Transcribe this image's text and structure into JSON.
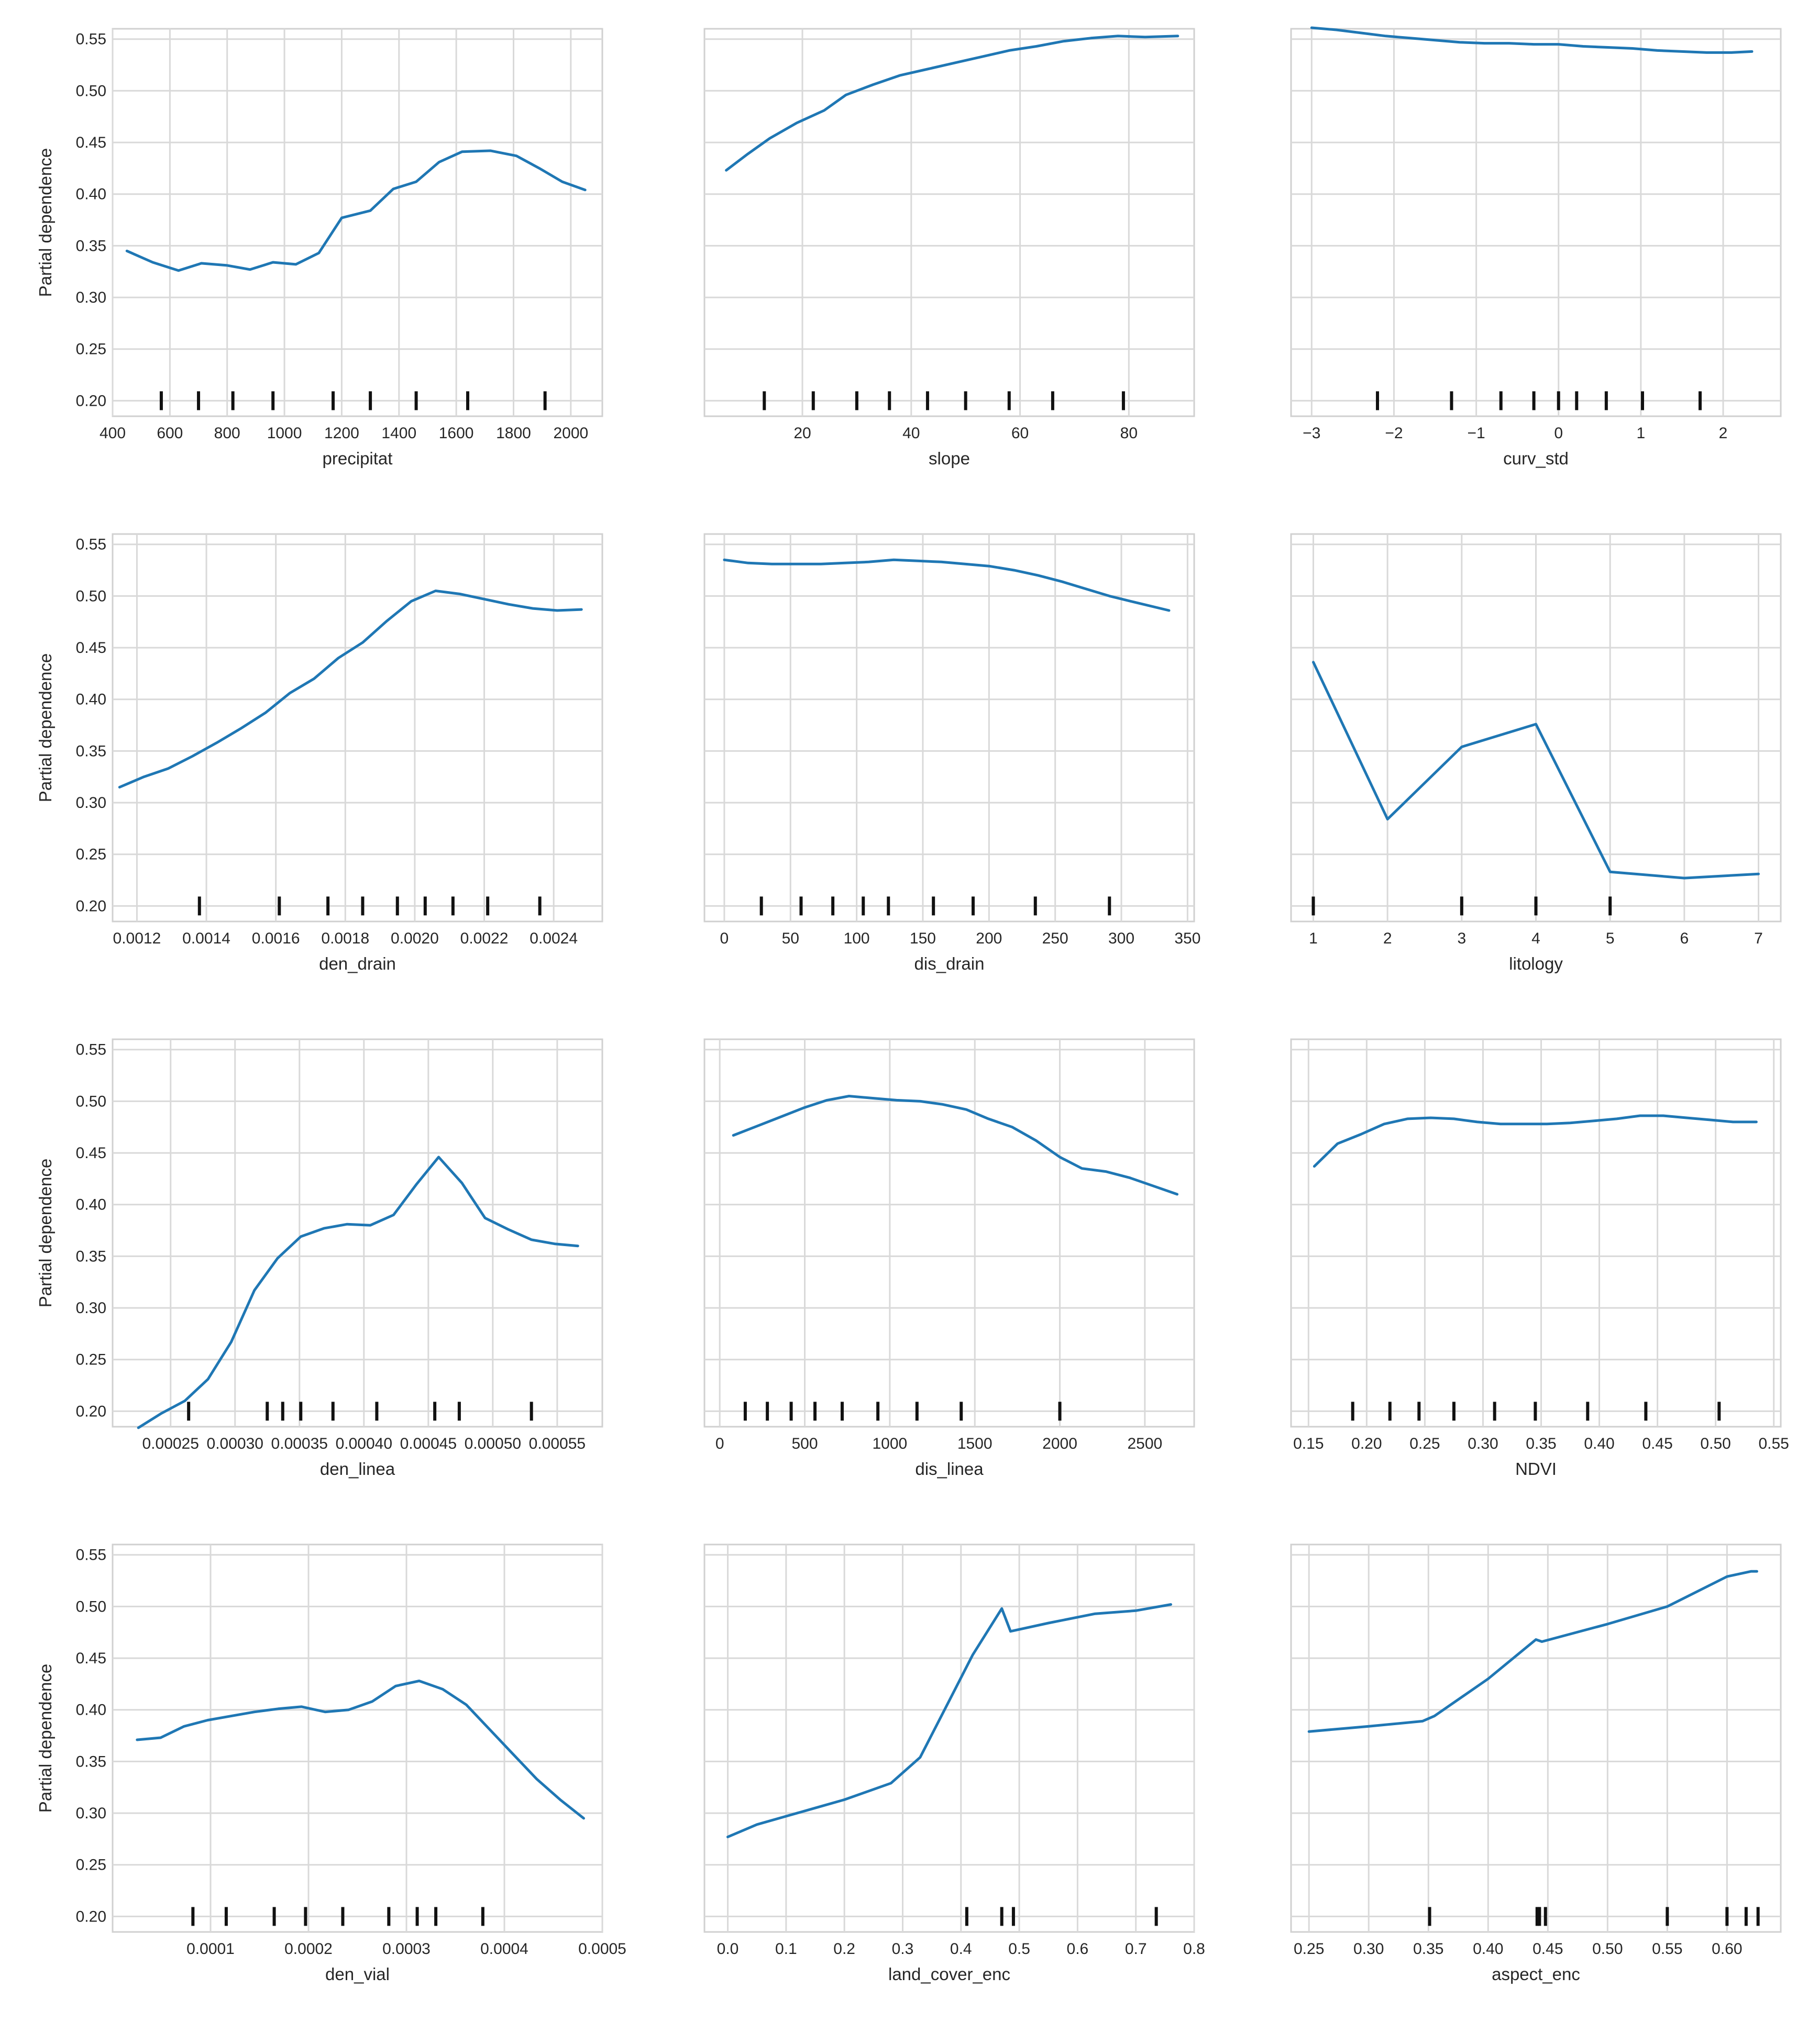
{
  "figure": {
    "line_color": "#1f77b4",
    "grid": true,
    "ylim": [
      0.185,
      0.56
    ],
    "yticks": [
      0.2,
      0.25,
      0.3,
      0.35,
      0.4,
      0.45,
      0.5,
      0.55
    ],
    "ylabel": "Partial dependence"
  },
  "chart_data": [
    {
      "type": "line",
      "xlabel": "precipitat",
      "xlim": [
        400,
        2110
      ],
      "xticks": [
        400,
        600,
        800,
        1000,
        1200,
        1400,
        1600,
        1800,
        2000
      ],
      "x": [
        450,
        540,
        630,
        710,
        800,
        880,
        960,
        1040,
        1120,
        1200,
        1300,
        1380,
        1460,
        1540,
        1620,
        1720,
        1810,
        1890,
        1970,
        2050
      ],
      "y": [
        0.345,
        0.334,
        0.326,
        0.333,
        0.331,
        0.327,
        0.334,
        0.332,
        0.343,
        0.377,
        0.384,
        0.405,
        0.412,
        0.431,
        0.441,
        0.442,
        0.437,
        0.425,
        0.412,
        0.404
      ],
      "deciles": [
        570,
        700,
        820,
        960,
        1170,
        1300,
        1460,
        1640,
        1910
      ]
    },
    {
      "type": "line",
      "xlabel": "slope",
      "xlim": [
        2,
        92
      ],
      "xticks": [
        20,
        40,
        60,
        80
      ],
      "x": [
        6,
        10,
        14,
        19,
        24,
        28,
        33,
        38,
        43,
        48,
        53,
        58,
        63,
        68,
        73,
        78,
        83,
        89
      ],
      "y": [
        0.423,
        0.439,
        0.454,
        0.469,
        0.481,
        0.496,
        0.506,
        0.515,
        0.521,
        0.527,
        0.533,
        0.539,
        0.543,
        0.548,
        0.551,
        0.553,
        0.552,
        0.553
      ],
      "deciles": [
        13,
        22,
        30,
        36,
        43,
        50,
        58,
        66,
        79
      ]
    },
    {
      "type": "line",
      "xlabel": "curv_std",
      "xlim": [
        -3.25,
        2.7
      ],
      "xticks": [
        -3,
        -2,
        -1,
        0,
        1,
        2
      ],
      "x": [
        -3.0,
        -2.7,
        -2.4,
        -2.1,
        -1.8,
        -1.5,
        -1.2,
        -0.9,
        -0.6,
        -0.3,
        0.0,
        0.3,
        0.6,
        0.9,
        1.2,
        1.5,
        1.8,
        2.1,
        2.35
      ],
      "y": [
        0.561,
        0.559,
        0.556,
        0.553,
        0.551,
        0.549,
        0.547,
        0.546,
        0.546,
        0.545,
        0.545,
        0.543,
        0.542,
        0.541,
        0.539,
        0.538,
        0.537,
        0.537,
        0.538
      ],
      "deciles": [
        -2.2,
        -1.3,
        -0.7,
        -0.3,
        0.0,
        0.22,
        0.58,
        1.02,
        1.72
      ]
    },
    {
      "type": "line",
      "xlabel": "den_drain",
      "xlim": [
        0.00113,
        0.00254
      ],
      "xticks": [
        0.0012,
        0.0014,
        0.0016,
        0.0018,
        0.002,
        0.0022,
        0.0024
      ],
      "xtick_labels": [
        "0.0012",
        "0.0014",
        "0.0016",
        "0.0018",
        "0.0020",
        "0.0022",
        "0.0024"
      ],
      "x": [
        0.00115,
        0.00122,
        0.00129,
        0.00136,
        0.00143,
        0.0015,
        0.00157,
        0.00164,
        0.00171,
        0.00178,
        0.00185,
        0.00192,
        0.00199,
        0.00206,
        0.00213,
        0.0022,
        0.00227,
        0.00234,
        0.00241,
        0.00248
      ],
      "y": [
        0.315,
        0.325,
        0.333,
        0.345,
        0.358,
        0.372,
        0.387,
        0.406,
        0.42,
        0.44,
        0.455,
        0.476,
        0.495,
        0.505,
        0.502,
        0.497,
        0.492,
        0.488,
        0.486,
        0.487
      ],
      "deciles": [
        0.00138,
        0.00161,
        0.00175,
        0.00185,
        0.00195,
        0.00203,
        0.00211,
        0.00221,
        0.00236
      ]
    },
    {
      "type": "line",
      "xlabel": "dis_drain",
      "xlim": [
        -15,
        355
      ],
      "xticks": [
        0,
        50,
        100,
        150,
        200,
        250,
        300,
        350
      ],
      "x": [
        0,
        18,
        36,
        55,
        73,
        91,
        109,
        128,
        146,
        164,
        182,
        200,
        219,
        237,
        255,
        273,
        291,
        310,
        336
      ],
      "y": [
        0.535,
        0.532,
        0.531,
        0.531,
        0.531,
        0.532,
        0.533,
        0.535,
        0.534,
        0.533,
        0.531,
        0.529,
        0.525,
        0.52,
        0.514,
        0.507,
        0.5,
        0.494,
        0.486
      ],
      "deciles": [
        28,
        58,
        82,
        105,
        124,
        158,
        188,
        235,
        291
      ]
    },
    {
      "type": "line",
      "xlabel": "litology",
      "xlim": [
        0.7,
        7.3
      ],
      "xticks": [
        1,
        2,
        3,
        4,
        5,
        6,
        7
      ],
      "x": [
        1,
        2,
        3,
        4,
        5,
        6,
        7
      ],
      "y": [
        0.436,
        0.284,
        0.354,
        0.376,
        0.233,
        0.227,
        0.231
      ],
      "deciles": [
        1,
        3,
        4,
        5
      ]
    },
    {
      "type": "line",
      "xlabel": "den_linea",
      "xlim": [
        0.000205,
        0.000585
      ],
      "xticks": [
        0.00025,
        0.0003,
        0.00035,
        0.0004,
        0.00045,
        0.0005,
        0.00055
      ],
      "xtick_labels": [
        "0.00025",
        "0.00030",
        "0.00035",
        "0.00040",
        "0.00045",
        "0.00050",
        "0.00055"
      ],
      "x": [
        0.000225,
        0.000243,
        0.000261,
        0.000279,
        0.000297,
        0.000315,
        0.000333,
        0.000351,
        0.000369,
        0.000387,
        0.000405,
        0.000423,
        0.000441,
        0.000458,
        0.000476,
        0.000494,
        0.000512,
        0.00053,
        0.000548,
        0.000566
      ],
      "y": [
        0.184,
        0.198,
        0.21,
        0.231,
        0.267,
        0.317,
        0.348,
        0.369,
        0.377,
        0.381,
        0.38,
        0.39,
        0.42,
        0.446,
        0.421,
        0.387,
        0.376,
        0.366,
        0.362,
        0.36
      ],
      "deciles": [
        0.000264,
        0.000325,
        0.000337,
        0.000351,
        0.000376,
        0.00041,
        0.000455,
        0.000474,
        0.00053
      ]
    },
    {
      "type": "line",
      "xlabel": "dis_linea",
      "xlim": [
        -90,
        2790
      ],
      "xticks": [
        0,
        500,
        1000,
        1500,
        2000,
        2500
      ],
      "x": [
        80,
        220,
        360,
        500,
        630,
        760,
        900,
        1040,
        1180,
        1310,
        1450,
        1580,
        1720,
        1860,
        2000,
        2130,
        2270,
        2410,
        2550,
        2690
      ],
      "y": [
        0.467,
        0.476,
        0.485,
        0.494,
        0.501,
        0.505,
        0.503,
        0.501,
        0.5,
        0.497,
        0.492,
        0.483,
        0.475,
        0.462,
        0.446,
        0.435,
        0.432,
        0.426,
        0.418,
        0.41
      ],
      "deciles": [
        150,
        280,
        420,
        560,
        720,
        930,
        1160,
        1420,
        2000
      ]
    },
    {
      "type": "line",
      "xlabel": "NDVI",
      "xlim": [
        0.135,
        0.556
      ],
      "xticks": [
        0.15,
        0.2,
        0.25,
        0.3,
        0.35,
        0.4,
        0.45,
        0.5,
        0.55
      ],
      "xtick_labels": [
        "0.15",
        "0.20",
        "0.25",
        "0.30",
        "0.35",
        "0.40",
        "0.45",
        "0.50",
        "0.55"
      ],
      "x": [
        0.155,
        0.175,
        0.195,
        0.215,
        0.235,
        0.255,
        0.275,
        0.295,
        0.315,
        0.335,
        0.355,
        0.375,
        0.395,
        0.415,
        0.435,
        0.455,
        0.475,
        0.495,
        0.515,
        0.535
      ],
      "y": [
        0.437,
        0.459,
        0.468,
        0.478,
        0.483,
        0.484,
        0.483,
        0.48,
        0.478,
        0.478,
        0.478,
        0.479,
        0.481,
        0.483,
        0.486,
        0.486,
        0.484,
        0.482,
        0.48,
        0.48
      ],
      "deciles": [
        0.188,
        0.22,
        0.245,
        0.275,
        0.31,
        0.345,
        0.39,
        0.44,
        0.503
      ]
    },
    {
      "type": "line",
      "xlabel": "den_vial",
      "xlim": [
        0.0,
        0.0005
      ],
      "xticks": [
        0.0001,
        0.0002,
        0.0003,
        0.0004,
        0.0005
      ],
      "xtick_labels": [
        "0.0001",
        "0.0002",
        "0.0003",
        "0.0004",
        "0.0005"
      ],
      "x": [
        2.5e-05,
        4.9e-05,
        7.3e-05,
        9.7e-05,
        0.000121,
        0.000145,
        0.000169,
        0.000193,
        0.000217,
        0.000241,
        0.000265,
        0.000289,
        0.000313,
        0.000337,
        0.000361,
        0.000385,
        0.000409,
        0.000433,
        0.000457,
        0.000481
      ],
      "y": [
        0.371,
        0.373,
        0.384,
        0.39,
        0.394,
        0.398,
        0.401,
        0.403,
        0.398,
        0.4,
        0.408,
        0.423,
        0.428,
        0.42,
        0.405,
        0.381,
        0.357,
        0.333,
        0.313,
        0.295
      ],
      "deciles": [
        8.2e-05,
        0.000116,
        0.000165,
        0.000197,
        0.000235,
        0.000282,
        0.000311,
        0.00033,
        0.000378
      ]
    },
    {
      "type": "line",
      "xlabel": "land_cover_enc",
      "xlim": [
        -0.04,
        0.8
      ],
      "xticks": [
        0.0,
        0.1,
        0.2,
        0.3,
        0.4,
        0.5,
        0.6,
        0.7,
        0.8
      ],
      "xtick_labels": [
        "0.0",
        "0.1",
        "0.2",
        "0.3",
        "0.4",
        "0.5",
        "0.6",
        "0.7",
        "0.8"
      ],
      "x": [
        0.0,
        0.05,
        0.1,
        0.15,
        0.2,
        0.28,
        0.33,
        0.38,
        0.42,
        0.47,
        0.485,
        0.55,
        0.63,
        0.7,
        0.76
      ],
      "y": [
        0.277,
        0.289,
        0.297,
        0.305,
        0.313,
        0.329,
        0.354,
        0.409,
        0.453,
        0.498,
        0.476,
        0.484,
        0.493,
        0.496,
        0.502
      ],
      "deciles": [
        0.41,
        0.47,
        0.49,
        0.735
      ]
    },
    {
      "type": "line",
      "xlabel": "aspect_enc",
      "xlim": [
        0.235,
        0.645
      ],
      "xticks": [
        0.25,
        0.3,
        0.35,
        0.4,
        0.45,
        0.5,
        0.55,
        0.6
      ],
      "xtick_labels": [
        "0.25",
        "0.30",
        "0.35",
        "0.40",
        "0.45",
        "0.50",
        "0.55",
        "0.60"
      ],
      "x": [
        0.25,
        0.3,
        0.345,
        0.355,
        0.4,
        0.44,
        0.445,
        0.5,
        0.55,
        0.6,
        0.62,
        0.625
      ],
      "y": [
        0.379,
        0.384,
        0.389,
        0.394,
        0.43,
        0.468,
        0.466,
        0.483,
        0.5,
        0.529,
        0.534,
        0.534
      ],
      "deciles": [
        0.351,
        0.441,
        0.443,
        0.448,
        0.55,
        0.6,
        0.616,
        0.626
      ]
    }
  ]
}
